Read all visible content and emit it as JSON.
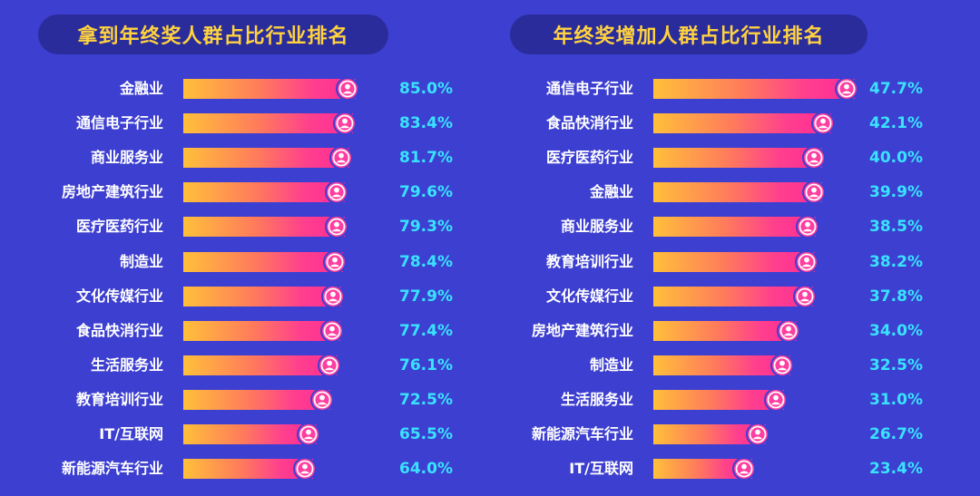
{
  "chart_data": [
    {
      "type": "bar",
      "orientation": "horizontal",
      "title": "拿到年终奖人群占比行业排名",
      "categories": [
        "金融业",
        "通信电子行业",
        "商业服务业",
        "房地产建筑行业",
        "医疗医药行业",
        "制造业",
        "文化传媒行业",
        "食品快消行业",
        "生活服务业",
        "教育培训行业",
        "IT/互联网",
        "新能源汽车行业"
      ],
      "values": [
        85.0,
        83.4,
        81.7,
        79.6,
        79.3,
        78.4,
        77.9,
        77.4,
        76.1,
        72.5,
        65.5,
        64.0
      ],
      "value_labels": [
        "85.0%",
        "83.4%",
        "81.7%",
        "79.6%",
        "79.3%",
        "78.4%",
        "77.9%",
        "77.4%",
        "76.1%",
        "72.5%",
        "65.5%",
        "64.0%"
      ],
      "unit": "%",
      "xlim": [
        0,
        100
      ]
    },
    {
      "type": "bar",
      "orientation": "horizontal",
      "title": "年终奖增加人群占比行业排名",
      "categories": [
        "通信电子行业",
        "食品快消行业",
        "医疗医药行业",
        "金融业",
        "商业服务业",
        "教育培训行业",
        "文化传媒行业",
        "房地产建筑行业",
        "制造业",
        "生活服务业",
        "新能源汽车行业",
        "IT/互联网"
      ],
      "values": [
        47.7,
        42.1,
        40.0,
        39.9,
        38.5,
        38.2,
        37.8,
        34.0,
        32.5,
        31.0,
        26.7,
        23.4
      ],
      "value_labels": [
        "47.7%",
        "42.1%",
        "40.0%",
        "39.9%",
        "38.5%",
        "38.2%",
        "37.8%",
        "34.0%",
        "32.5%",
        "31.0%",
        "26.7%",
        "23.4%"
      ],
      "unit": "%",
      "xlim": [
        0,
        100
      ]
    }
  ],
  "colors": {
    "background": "#3d3fd0",
    "title_pill": "#2a2c9c",
    "title_text": "#ffd23f",
    "bar_start": "#ffc03a",
    "bar_end": "#ff2b96",
    "value_text": "#39e3ff",
    "label_text": "#ffffff"
  },
  "icons": {
    "bar_end_marker": "person-icon"
  }
}
